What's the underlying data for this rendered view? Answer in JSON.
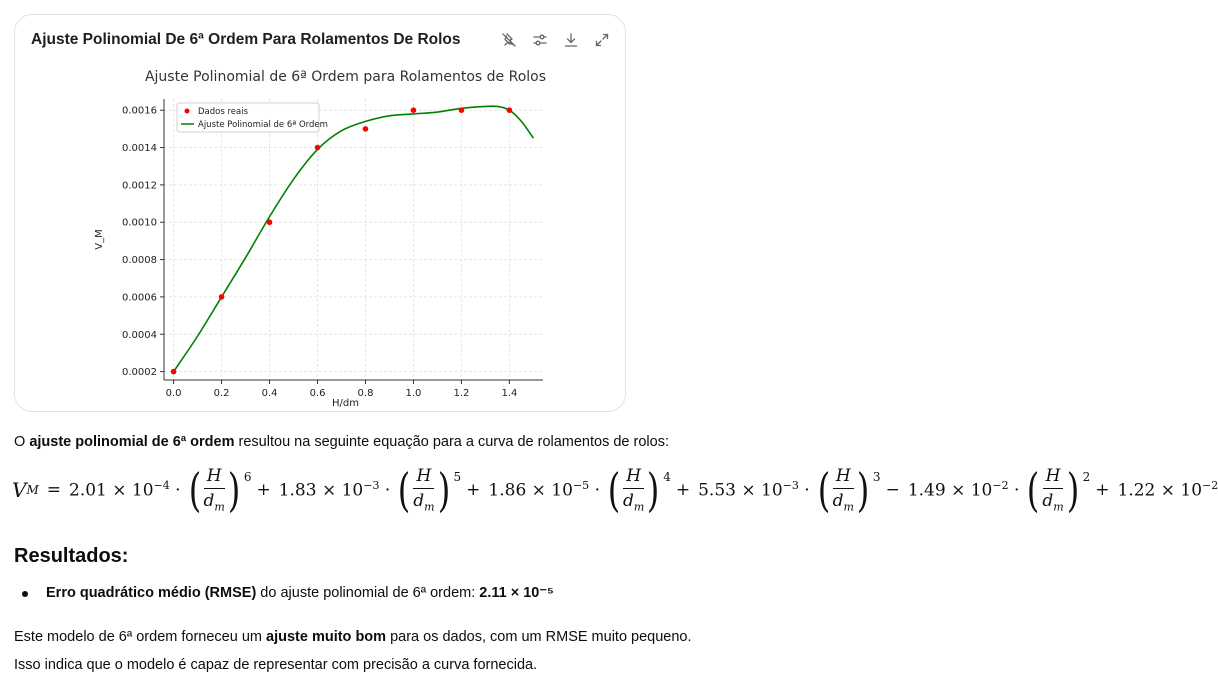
{
  "card": {
    "title": "Ajuste Polinomial De 6ª Ordem Para Rolamentos De Rolos",
    "tools": [
      "pin-off-icon",
      "settings-sliders-icon",
      "download-icon",
      "expand-icon"
    ]
  },
  "chart_data": {
    "type": "line",
    "title": "Ajuste Polinomial de 6ª Ordem para Rolamentos de Rolos",
    "xlabel": "H/dm",
    "ylabel": "V_M",
    "xlim": [
      -0.04,
      1.54
    ],
    "ylim": [
      0.000155,
      0.00166
    ],
    "xticks": [
      "0.0",
      "0.2",
      "0.4",
      "0.6",
      "0.8",
      "1.0",
      "1.2",
      "1.4"
    ],
    "xtick_values": [
      0.0,
      0.2,
      0.4,
      0.6,
      0.8,
      1.0,
      1.2,
      1.4
    ],
    "yticks": [
      "0.0002",
      "0.0004",
      "0.0006",
      "0.0008",
      "0.0010",
      "0.0012",
      "0.0014",
      "0.0016"
    ],
    "ytick_values": [
      0.0002,
      0.0004,
      0.0006,
      0.0008,
      0.001,
      0.0012,
      0.0014,
      0.0016
    ],
    "grid": true,
    "legend_position": "top-left",
    "series": [
      {
        "name": "Dados reais",
        "kind": "scatter",
        "color": "#ff0000",
        "x": [
          0.0,
          0.2,
          0.4,
          0.6,
          0.8,
          1.0,
          1.2,
          1.4
        ],
        "y": [
          0.0002,
          0.0006,
          0.001,
          0.0014,
          0.0015,
          0.0016,
          0.0016,
          0.0016
        ]
      },
      {
        "name": "Ajuste Polinomial de 6ª Ordem",
        "kind": "line",
        "color": "#008000",
        "x": [
          0.0,
          0.1,
          0.2,
          0.3,
          0.4,
          0.5,
          0.6,
          0.7,
          0.8,
          0.9,
          1.0,
          1.1,
          1.2,
          1.3,
          1.35,
          1.4,
          1.45,
          1.5
        ],
        "y": [
          0.0002,
          0.00039,
          0.0006,
          0.00081,
          0.00103,
          0.00123,
          0.00139,
          0.00149,
          0.00154,
          0.00157,
          0.00158,
          0.00159,
          0.00161,
          0.00162,
          0.00162,
          0.0016,
          0.00154,
          0.00145
        ]
      }
    ]
  },
  "intro": {
    "prefix": "O ",
    "bold": "ajuste polinomial de 6ª ordem",
    "suffix": " resultou na seguinte equação para a curva de rolamentos de rolos:"
  },
  "equation": {
    "lhs": "V",
    "lhs_sub": "M",
    "frac_num": "H",
    "frac_den": "d",
    "frac_den_sub": "m",
    "terms": [
      {
        "sign": "=",
        "mantissa": "2.01",
        "exp": "−4",
        "power": "6"
      },
      {
        "sign": "+",
        "mantissa": "1.83",
        "exp": "−3",
        "power": "5"
      },
      {
        "sign": "+",
        "mantissa": "1.86",
        "exp": "−5",
        "power": "4"
      },
      {
        "sign": "+",
        "mantissa": "5.53",
        "exp": "−3",
        "power": "3"
      },
      {
        "sign": "−",
        "mantissa": "1.49",
        "exp": "−2",
        "power": "2"
      },
      {
        "sign": "+",
        "mantissa": "1.22",
        "exp": "−2",
        "power": ""
      }
    ]
  },
  "results": {
    "heading": "Resultados:",
    "bullet_bold": "Erro quadrático médio (RMSE)",
    "bullet_text": " do ajuste polinomial de 6ª ordem: ",
    "bullet_value": "2.11 × 10⁻⁵"
  },
  "conclusion": {
    "line1_prefix": "Este modelo de 6ª ordem forneceu um ",
    "line1_bold": "ajuste muito bom",
    "line1_suffix": " para os dados, com um RMSE muito pequeno.",
    "line2": "Isso indica que o modelo é capaz de representar com precisão a curva fornecida."
  }
}
